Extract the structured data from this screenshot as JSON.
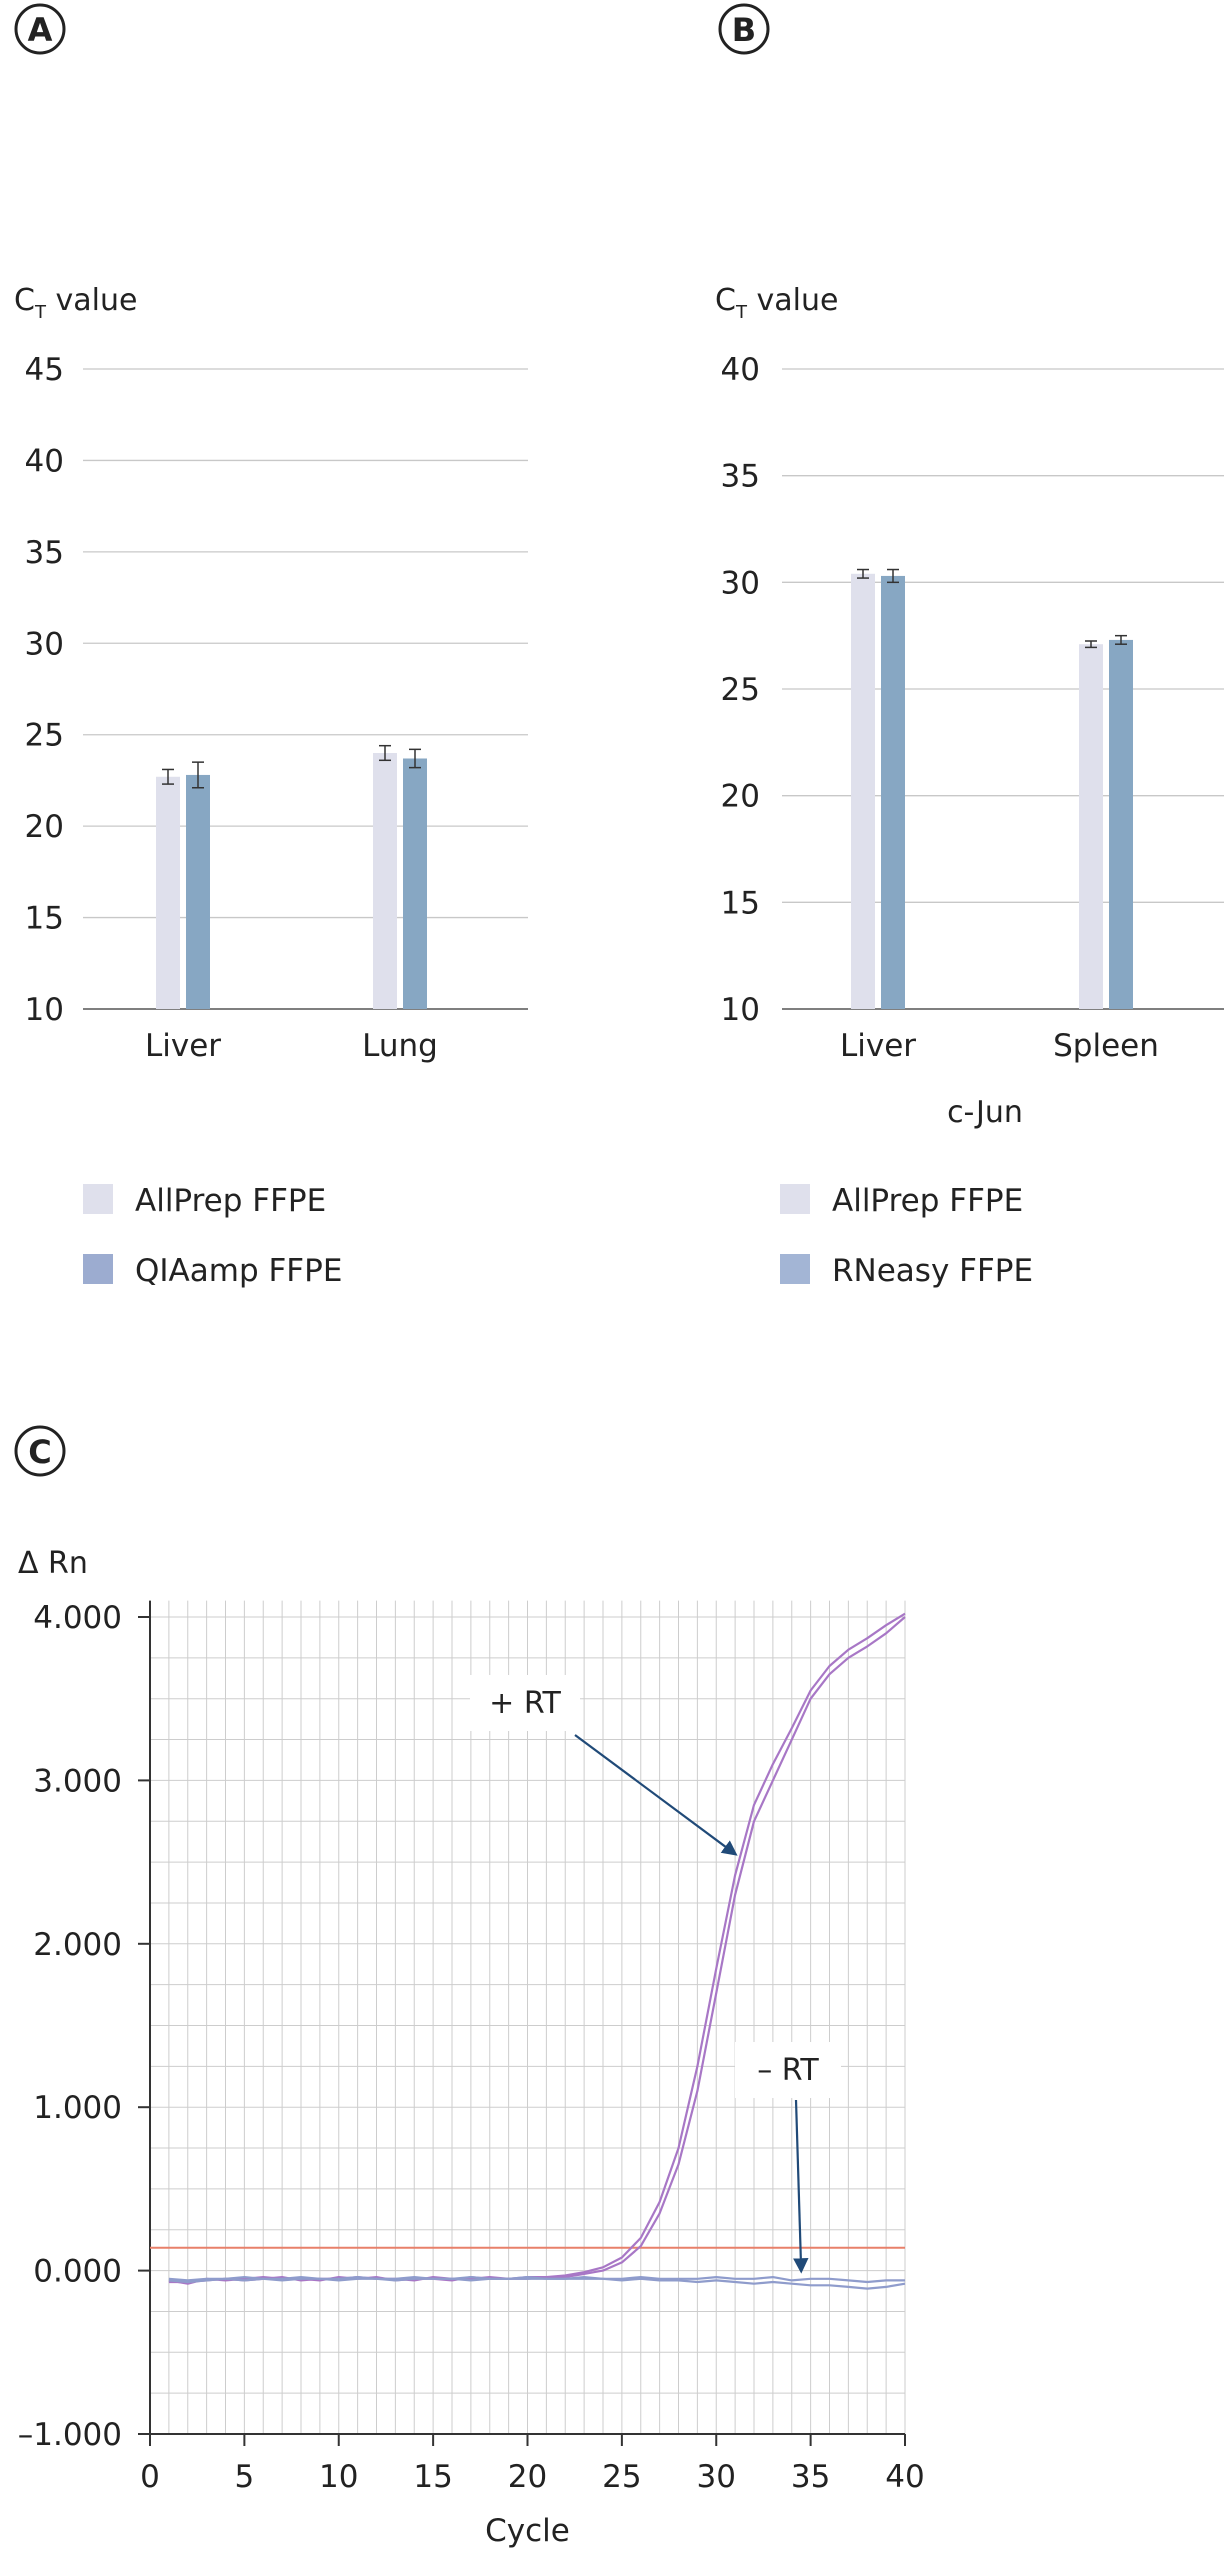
{
  "panels": {
    "A": {
      "badge": "A"
    },
    "B": {
      "badge": "B"
    },
    "C": {
      "badge": "C"
    }
  },
  "colors": {
    "light_bar": "#dfe0ec",
    "dark_bar": "#87a7c3",
    "legend_dark_A": "#9cacd0",
    "legend_dark_B": "#a3b5d5",
    "grid": "#c8c8c8",
    "plus_rt": "#a877c6",
    "minus_rt": "#8f9ccc",
    "threshold": "#e8806a",
    "arrow": "#204a78"
  },
  "chart_data": [
    {
      "id": "A",
      "type": "bar",
      "ylabel_main": "C",
      "ylabel_sub": "T",
      "ylabel_tail": " value",
      "ylim": [
        10,
        45
      ],
      "yticks": [
        10,
        15,
        20,
        25,
        30,
        35,
        40,
        45
      ],
      "categories": [
        "Liver",
        "Lung"
      ],
      "series": [
        {
          "name": "AllPrep FFPE",
          "values": [
            22.7,
            24.0
          ],
          "errors": [
            0.4,
            0.4
          ]
        },
        {
          "name": "QIAamp FFPE",
          "values": [
            22.8,
            23.7
          ],
          "errors": [
            0.7,
            0.5
          ]
        }
      ],
      "grid": true,
      "legend": "bottom"
    },
    {
      "id": "B",
      "type": "bar",
      "ylabel_main": "C",
      "ylabel_sub": "T",
      "ylabel_tail": " value",
      "ylim": [
        10,
        40
      ],
      "yticks": [
        10,
        15,
        20,
        25,
        30,
        35,
        40
      ],
      "categories": [
        "Liver",
        "Spleen"
      ],
      "xlabel": "c-Jun",
      "series": [
        {
          "name": "AllPrep FFPE",
          "values": [
            30.4,
            27.1
          ],
          "errors": [
            0.2,
            0.15
          ]
        },
        {
          "name": "RNeasy FFPE",
          "values": [
            30.3,
            27.3
          ],
          "errors": [
            0.3,
            0.2
          ]
        }
      ],
      "grid": true,
      "legend": "bottom"
    },
    {
      "id": "C",
      "type": "line",
      "ylabel": "Δ Rn",
      "xlabel": "Cycle",
      "xlim": [
        0,
        40
      ],
      "ylim": [
        -1,
        4
      ],
      "xticks": [
        0,
        5,
        10,
        15,
        20,
        25,
        30,
        35,
        40
      ],
      "yticks": [
        -1,
        0,
        1,
        2,
        3,
        4
      ],
      "ytick_labels": [
        "–1.000",
        "0.000",
        "1.000",
        "2.000",
        "3.000",
        "4.000"
      ],
      "threshold": 0.14,
      "grid": true,
      "series": [
        {
          "name": "+ RT",
          "x": [
            1,
            2,
            3,
            4,
            5,
            6,
            7,
            8,
            9,
            10,
            11,
            12,
            13,
            14,
            15,
            16,
            17,
            18,
            19,
            20,
            21,
            22,
            23,
            24,
            25,
            26,
            27,
            28,
            29,
            30,
            31,
            32,
            33,
            34,
            35,
            36,
            37,
            38,
            39,
            40
          ],
          "y": [
            -0.06,
            -0.08,
            -0.05,
            -0.06,
            -0.05,
            -0.04,
            -0.05,
            -0.05,
            -0.06,
            -0.04,
            -0.05,
            -0.04,
            -0.06,
            -0.05,
            -0.05,
            -0.06,
            -0.04,
            -0.05,
            -0.05,
            -0.04,
            -0.04,
            -0.04,
            -0.02,
            0.0,
            0.05,
            0.15,
            0.35,
            0.65,
            1.1,
            1.7,
            2.3,
            2.75,
            3.0,
            3.25,
            3.5,
            3.65,
            3.75,
            3.82,
            3.9,
            4.0
          ]
        },
        {
          "name": "+ RT",
          "x": [
            1,
            2,
            3,
            4,
            5,
            6,
            7,
            8,
            9,
            10,
            11,
            12,
            13,
            14,
            15,
            16,
            17,
            18,
            19,
            20,
            21,
            22,
            23,
            24,
            25,
            26,
            27,
            28,
            29,
            30,
            31,
            32,
            33,
            34,
            35,
            36,
            37,
            38,
            39,
            40
          ],
          "y": [
            -0.07,
            -0.07,
            -0.06,
            -0.05,
            -0.06,
            -0.05,
            -0.04,
            -0.06,
            -0.05,
            -0.05,
            -0.04,
            -0.05,
            -0.05,
            -0.06,
            -0.04,
            -0.05,
            -0.05,
            -0.04,
            -0.05,
            -0.05,
            -0.04,
            -0.03,
            -0.01,
            0.02,
            0.08,
            0.2,
            0.42,
            0.75,
            1.25,
            1.85,
            2.42,
            2.85,
            3.1,
            3.32,
            3.55,
            3.7,
            3.8,
            3.87,
            3.95,
            4.02
          ]
        },
        {
          "name": "– RT",
          "x": [
            1,
            2,
            3,
            4,
            5,
            6,
            7,
            8,
            9,
            10,
            11,
            12,
            13,
            14,
            15,
            16,
            17,
            18,
            19,
            20,
            21,
            22,
            23,
            24,
            25,
            26,
            27,
            28,
            29,
            30,
            31,
            32,
            33,
            34,
            35,
            36,
            37,
            38,
            39,
            40
          ],
          "y": [
            -0.05,
            -0.06,
            -0.05,
            -0.05,
            -0.04,
            -0.05,
            -0.05,
            -0.04,
            -0.05,
            -0.05,
            -0.04,
            -0.05,
            -0.05,
            -0.04,
            -0.05,
            -0.05,
            -0.04,
            -0.05,
            -0.05,
            -0.04,
            -0.05,
            -0.05,
            -0.04,
            -0.05,
            -0.05,
            -0.04,
            -0.05,
            -0.05,
            -0.05,
            -0.04,
            -0.05,
            -0.05,
            -0.04,
            -0.06,
            -0.05,
            -0.05,
            -0.06,
            -0.07,
            -0.06,
            -0.06
          ]
        },
        {
          "name": "– RT",
          "x": [
            1,
            2,
            3,
            4,
            5,
            6,
            7,
            8,
            9,
            10,
            11,
            12,
            13,
            14,
            15,
            16,
            17,
            18,
            19,
            20,
            21,
            22,
            23,
            24,
            25,
            26,
            27,
            28,
            29,
            30,
            31,
            32,
            33,
            34,
            35,
            36,
            37,
            38,
            39,
            40
          ],
          "y": [
            -0.06,
            -0.07,
            -0.06,
            -0.05,
            -0.06,
            -0.05,
            -0.06,
            -0.05,
            -0.05,
            -0.06,
            -0.05,
            -0.05,
            -0.06,
            -0.05,
            -0.05,
            -0.05,
            -0.06,
            -0.05,
            -0.05,
            -0.05,
            -0.05,
            -0.05,
            -0.05,
            -0.05,
            -0.06,
            -0.05,
            -0.06,
            -0.06,
            -0.07,
            -0.06,
            -0.07,
            -0.08,
            -0.07,
            -0.08,
            -0.09,
            -0.09,
            -0.1,
            -0.11,
            -0.1,
            -0.08
          ]
        }
      ],
      "annotations": [
        {
          "text": "+ RT",
          "target": [
            31,
            2.55
          ]
        },
        {
          "text": "– RT",
          "target": [
            34.5,
            0.0
          ]
        }
      ]
    }
  ]
}
